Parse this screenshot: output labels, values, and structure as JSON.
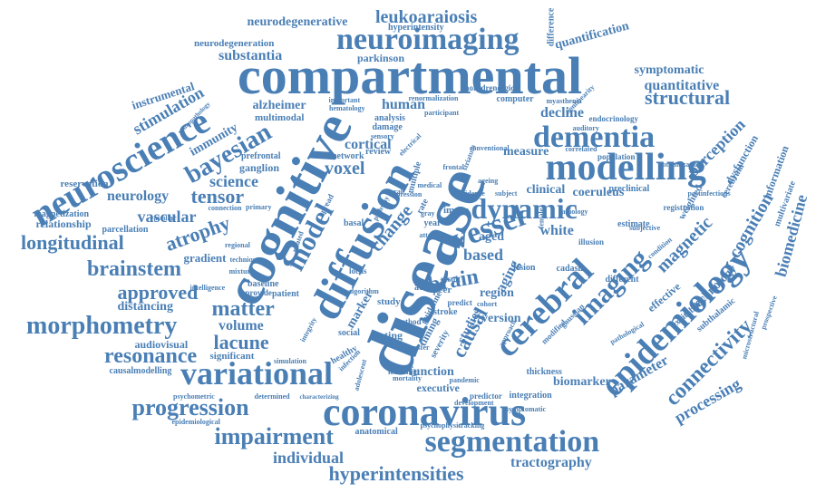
{
  "color": "#4a7fb5",
  "words": [
    {
      "text": "disease"
    },
    {
      "text": "compartmental"
    },
    {
      "text": "cognitive"
    },
    {
      "text": "diffusion"
    },
    {
      "text": "modelling"
    },
    {
      "text": "dementia"
    },
    {
      "text": "neuroscience"
    },
    {
      "text": "coronavirus"
    },
    {
      "text": "segmentation"
    },
    {
      "text": "epidemiology"
    },
    {
      "text": "cerebral"
    },
    {
      "text": "imaging"
    },
    {
      "text": "neuroimaging"
    },
    {
      "text": "vessel"
    },
    {
      "text": "dynamic"
    },
    {
      "text": "variational"
    },
    {
      "text": "morphometry"
    },
    {
      "text": "bayesian"
    },
    {
      "text": "model"
    },
    {
      "text": "connectivity"
    },
    {
      "text": "progression"
    },
    {
      "text": "impairment"
    },
    {
      "text": "hyperintensities"
    },
    {
      "text": "brainstem"
    },
    {
      "text": "longitudinal"
    },
    {
      "text": "resonance"
    },
    {
      "text": "approved"
    },
    {
      "text": "matter"
    },
    {
      "text": "atrophy"
    },
    {
      "text": "lacune"
    },
    {
      "text": "magnetic"
    },
    {
      "text": "structural"
    },
    {
      "text": "leukoaraiosis"
    },
    {
      "text": "neurodegenerative"
    },
    {
      "text": "substantia"
    },
    {
      "text": "stimulation"
    },
    {
      "text": "tensor"
    },
    {
      "text": "voxel"
    },
    {
      "text": "brain"
    },
    {
      "text": "cognition"
    },
    {
      "text": "perception"
    },
    {
      "text": "quantitative"
    },
    {
      "text": "symptomatic"
    },
    {
      "text": "quantification"
    },
    {
      "text": "biomedicine"
    },
    {
      "text": "processing"
    },
    {
      "text": "tractography"
    },
    {
      "text": "individual"
    },
    {
      "text": "vascular"
    },
    {
      "text": "human"
    },
    {
      "text": "decline"
    },
    {
      "text": "causal"
    },
    {
      "text": "change"
    },
    {
      "text": "based"
    },
    {
      "text": "white"
    },
    {
      "text": "science"
    },
    {
      "text": "neurology"
    },
    {
      "text": "immunity"
    },
    {
      "text": "instrumental"
    },
    {
      "text": "measure"
    },
    {
      "text": "volume"
    },
    {
      "text": "cortical"
    },
    {
      "text": "clinical"
    },
    {
      "text": "coeruleus"
    },
    {
      "text": "aging"
    },
    {
      "text": "aged"
    },
    {
      "text": "region"
    },
    {
      "text": "version"
    },
    {
      "text": "studies"
    },
    {
      "text": "parameter"
    },
    {
      "text": "technology"
    },
    {
      "text": "information"
    },
    {
      "text": "dysfunction"
    },
    {
      "text": "biomarker"
    },
    {
      "text": "executive"
    },
    {
      "text": "function"
    },
    {
      "text": "testing"
    },
    {
      "text": "timing"
    },
    {
      "text": "neurodegeneration"
    },
    {
      "text": "parkinson"
    },
    {
      "text": "alzheimer"
    },
    {
      "text": "multimodal"
    },
    {
      "text": "ganglion"
    },
    {
      "text": "reservation"
    },
    {
      "text": "relationship"
    },
    {
      "text": "magnetization"
    },
    {
      "text": "parcellation"
    },
    {
      "text": "gradient"
    },
    {
      "text": "distancing"
    },
    {
      "text": "audiovisual"
    },
    {
      "text": "significant"
    },
    {
      "text": "causalmodelling"
    },
    {
      "text": "psychometric"
    },
    {
      "text": "epidemiological"
    },
    {
      "text": "anatomical"
    },
    {
      "text": "psychophysic"
    },
    {
      "text": "determined"
    },
    {
      "text": "integration"
    },
    {
      "text": "thickness"
    },
    {
      "text": "preclinical"
    },
    {
      "text": "weighted"
    },
    {
      "text": "multivariate"
    },
    {
      "text": "cerebrum"
    },
    {
      "text": "prospective"
    },
    {
      "text": "estimate"
    },
    {
      "text": "registration"
    },
    {
      "text": "computer"
    },
    {
      "text": "endocrinology"
    },
    {
      "text": "population"
    },
    {
      "text": "organization"
    },
    {
      "text": "illusion"
    },
    {
      "text": "different"
    },
    {
      "text": "effective"
    },
    {
      "text": "excitability"
    },
    {
      "text": "subthalamic"
    },
    {
      "text": "microstructural"
    },
    {
      "text": "lesion"
    },
    {
      "text": "cadasil"
    },
    {
      "text": "predictor"
    },
    {
      "text": "development"
    },
    {
      "text": "hyperintensity"
    },
    {
      "text": "difference"
    },
    {
      "text": "stroke"
    },
    {
      "text": "method"
    },
    {
      "text": "cohort"
    },
    {
      "text": "predict"
    },
    {
      "text": "result"
    },
    {
      "text": "peer"
    },
    {
      "text": "image"
    },
    {
      "text": "prefrontal"
    },
    {
      "text": "network"
    },
    {
      "text": "review"
    },
    {
      "text": "damage"
    },
    {
      "text": "analysis"
    },
    {
      "text": "sensory"
    },
    {
      "text": "basal"
    },
    {
      "text": "locus"
    },
    {
      "text": "study"
    },
    {
      "text": "patient"
    },
    {
      "text": "provide"
    },
    {
      "text": "baseline"
    },
    {
      "text": "intelligence"
    },
    {
      "text": "mixture"
    },
    {
      "text": "regional"
    },
    {
      "text": "simulation"
    },
    {
      "text": "social"
    },
    {
      "text": "healthy"
    },
    {
      "text": "learning"
    },
    {
      "text": "mortality"
    },
    {
      "text": "adolescent"
    },
    {
      "text": "transfer"
    },
    {
      "text": "severity"
    },
    {
      "text": "pandemic"
    },
    {
      "text": "adult"
    },
    {
      "text": "gaussian"
    },
    {
      "text": "modified"
    },
    {
      "text": "myasthenia"
    },
    {
      "text": "nonlinearity"
    },
    {
      "text": "conventional"
    },
    {
      "text": "electrical"
    },
    {
      "text": "important"
    },
    {
      "text": "hematology"
    },
    {
      "text": "noradrenergic"
    },
    {
      "text": "renormalization"
    },
    {
      "text": "participant"
    },
    {
      "text": "auditory"
    },
    {
      "text": "correlated"
    },
    {
      "text": "radiology"
    },
    {
      "text": "subjective"
    },
    {
      "text": "condition"
    },
    {
      "text": "guideline"
    },
    {
      "text": "marker"
    },
    {
      "text": "infection"
    },
    {
      "text": "spread"
    },
    {
      "text": "related"
    },
    {
      "text": "connection"
    },
    {
      "text": "primary"
    },
    {
      "text": "technique"
    },
    {
      "text": "vascular"
    },
    {
      "text": "female"
    },
    {
      "text": "year"
    },
    {
      "text": "rate"
    },
    {
      "text": "multiple"
    },
    {
      "text": "several"
    },
    {
      "text": "gray"
    },
    {
      "text": "attention"
    },
    {
      "text": "algorithm"
    },
    {
      "text": "integrity"
    },
    {
      "text": "postinfectious"
    },
    {
      "text": "neuropathology"
    },
    {
      "text": "characterizing"
    },
    {
      "text": "pathological"
    },
    {
      "text": "asymptomatic"
    },
    {
      "text": "approach"
    },
    {
      "text": "pathway"
    },
    {
      "text": "evidence"
    },
    {
      "text": "striatum"
    },
    {
      "text": "medical"
    },
    {
      "text": "depression"
    },
    {
      "text": "subject"
    },
    {
      "text": "ageing"
    },
    {
      "text": "frontal"
    },
    {
      "text": "tracking"
    }
  ]
}
